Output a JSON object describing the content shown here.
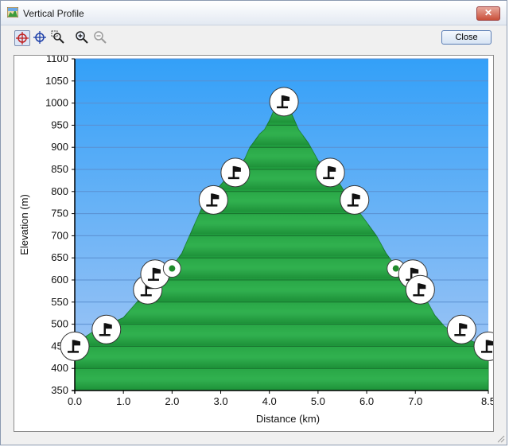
{
  "window": {
    "title": "Vertical Profile",
    "close_glyph": "✕"
  },
  "toolbar": {
    "tools": [
      {
        "name": "crosshair-red-icon",
        "active": true
      },
      {
        "name": "crosshair-blue-icon",
        "active": false
      },
      {
        "name": "zoom-box-icon",
        "active": false
      },
      {
        "name": "zoom-in-icon",
        "active": false
      },
      {
        "name": "zoom-out-icon",
        "active": false
      }
    ],
    "close_label": "Close"
  },
  "colors": {
    "sky_top": "#33a0f8",
    "sky_bottom": "#a8c8f4",
    "terrain": "#27a043",
    "waypoint_fill": "#ffffff",
    "flag": "#111111",
    "dot": "#1f8a2a"
  },
  "chart_data": {
    "type": "area",
    "xlabel": "Distance   (km)",
    "ylabel": "Elevation (m)",
    "xlim": [
      0,
      8.5
    ],
    "ylim": [
      350,
      1100
    ],
    "x_ticks": [
      0.0,
      1.0,
      2.0,
      3.0,
      4.0,
      5.0,
      6.0,
      7.0,
      8.5
    ],
    "x_tick_labels": [
      "0.0",
      "1.0",
      "2.0",
      "3.0",
      "4.0",
      "5.0",
      "6.0",
      "7.0",
      "8.5"
    ],
    "y_ticks": [
      350,
      400,
      450,
      500,
      550,
      600,
      650,
      700,
      750,
      800,
      850,
      900,
      950,
      1000,
      1050,
      1100
    ],
    "y_tick_labels": [
      "350",
      "400",
      "450",
      "500",
      "550",
      "600",
      "650",
      "700",
      "750",
      "800",
      "850",
      "900",
      "950",
      "1000",
      "1050",
      "1100"
    ],
    "grid": true,
    "series": [
      {
        "x": [
          0.0,
          0.2,
          0.4,
          0.6,
          0.8,
          1.0,
          1.2,
          1.4,
          1.6,
          1.8,
          2.0,
          2.2,
          2.4,
          2.6,
          2.8,
          3.0,
          3.2,
          3.4,
          3.5,
          3.6,
          3.7,
          3.8,
          3.9,
          4.0,
          4.1,
          4.2,
          4.3,
          4.4,
          4.5,
          4.6,
          4.7,
          4.8,
          4.9,
          5.0,
          5.2,
          5.4,
          5.6,
          5.8,
          6.0,
          6.2,
          6.4,
          6.6,
          6.8,
          7.0,
          7.2,
          7.4,
          7.6,
          7.8,
          8.0,
          8.2,
          8.5
        ],
        "y": [
          450,
          470,
          485,
          495,
          505,
          515,
          540,
          565,
          590,
          615,
          630,
          660,
          710,
          760,
          790,
          815,
          840,
          860,
          875,
          900,
          915,
          930,
          940,
          960,
          985,
          1000,
          1005,
          990,
          965,
          940,
          925,
          910,
          890,
          870,
          850,
          825,
          790,
          760,
          730,
          700,
          660,
          630,
          620,
          600,
          560,
          520,
          495,
          480,
          470,
          460,
          450
        ]
      }
    ],
    "waypoints": [
      {
        "x": 0.0,
        "y": 450,
        "type": "flag"
      },
      {
        "x": 0.65,
        "y": 488,
        "type": "flag"
      },
      {
        "x": 1.5,
        "y": 578,
        "type": "flag"
      },
      {
        "x": 1.65,
        "y": 613,
        "type": "flag"
      },
      {
        "x": 2.0,
        "y": 626,
        "type": "dot"
      },
      {
        "x": 2.85,
        "y": 781,
        "type": "flag"
      },
      {
        "x": 3.3,
        "y": 843,
        "type": "flag"
      },
      {
        "x": 4.3,
        "y": 1003,
        "type": "flag"
      },
      {
        "x": 5.25,
        "y": 843,
        "type": "flag"
      },
      {
        "x": 5.75,
        "y": 781,
        "type": "flag"
      },
      {
        "x": 6.6,
        "y": 626,
        "type": "dot"
      },
      {
        "x": 6.95,
        "y": 613,
        "type": "flag"
      },
      {
        "x": 7.1,
        "y": 578,
        "type": "flag"
      },
      {
        "x": 7.95,
        "y": 488,
        "type": "flag"
      },
      {
        "x": 8.5,
        "y": 450,
        "type": "flag"
      }
    ]
  }
}
